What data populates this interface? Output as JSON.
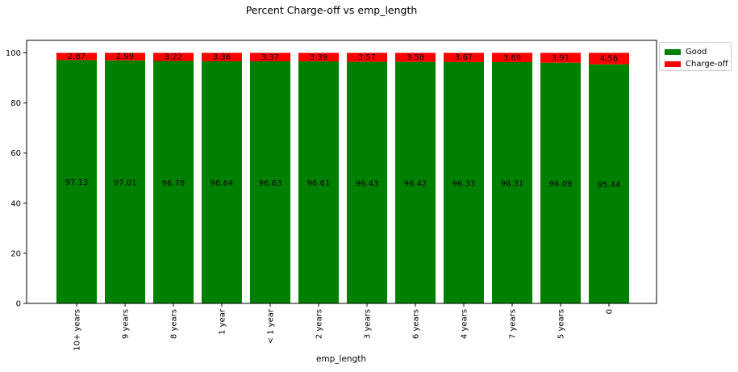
{
  "chart_data": {
    "type": "bar",
    "stacked": true,
    "title": "Percent Charge-off vs emp_length",
    "xlabel": "emp_length",
    "ylabel": "",
    "ylim": [
      0,
      105
    ],
    "yticks": [
      0,
      20,
      40,
      60,
      80,
      100
    ],
    "grid": false,
    "legend_position": "outside top-right",
    "categories": [
      "10+ years",
      "9 years",
      "8 years",
      "1 year",
      "< 1 year",
      "2 years",
      "3 years",
      "6 years",
      "4 years",
      "7 years",
      "5 years",
      "0"
    ],
    "series": [
      {
        "name": "Good",
        "color": "#008000",
        "values": [
          97.13,
          97.01,
          96.78,
          96.64,
          96.63,
          96.61,
          96.43,
          96.42,
          96.33,
          96.31,
          96.09,
          95.44
        ],
        "labels": [
          "97.13",
          "97.01",
          "96.78",
          "96.64",
          "96.63",
          "96.61",
          "96.43",
          "96.42",
          "96.33",
          "96.31",
          "96.09",
          "95.44"
        ]
      },
      {
        "name": "Charge-off",
        "color": "#ff0000",
        "values": [
          2.87,
          2.99,
          3.22,
          3.36,
          3.37,
          3.39,
          3.57,
          3.58,
          3.67,
          3.69,
          3.91,
          4.56
        ],
        "labels": [
          "2.87",
          "2.99",
          "3.22",
          "3.36",
          "3.37",
          "3.39",
          "3.57",
          "3.58",
          "3.67",
          "3.69",
          "3.91",
          "4.56"
        ]
      }
    ]
  }
}
